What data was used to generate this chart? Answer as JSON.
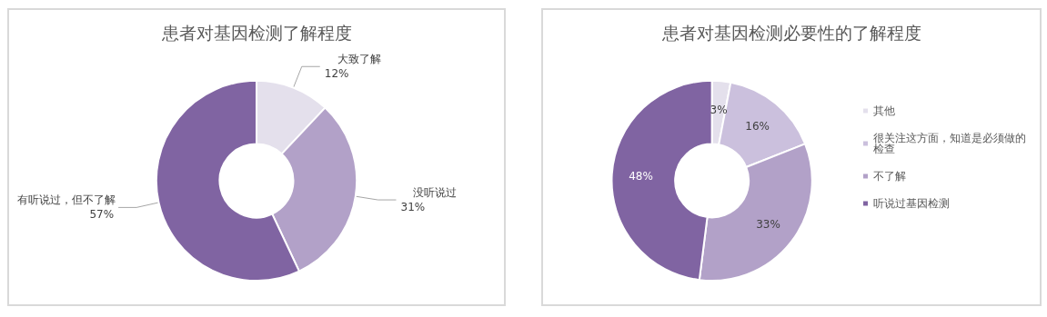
{
  "chart_data": [
    {
      "type": "donut",
      "title": "患者对基因检测了解程度",
      "categories": [
        "大致了解",
        "没听说过",
        "有听说过，但不了解"
      ],
      "values": [
        12,
        31,
        57
      ],
      "colors": [
        "#e4e0ec",
        "#b2a1c8",
        "#8064a2"
      ],
      "value_labels": [
        "12%",
        "31%",
        "57%"
      ],
      "legend": false
    },
    {
      "type": "donut",
      "title": "患者对基因检测必要性的了解程度",
      "categories": [
        "其他",
        "很关注这方面，知道是必须做的检查",
        "不了解",
        "听说过基因检测"
      ],
      "values": [
        3,
        16,
        33,
        48
      ],
      "colors": [
        "#e4e0ec",
        "#cbc0dd",
        "#b2a1c8",
        "#8064a2"
      ],
      "value_labels": [
        "3%",
        "16%",
        "33%",
        "48%"
      ],
      "legend": "right"
    }
  ]
}
